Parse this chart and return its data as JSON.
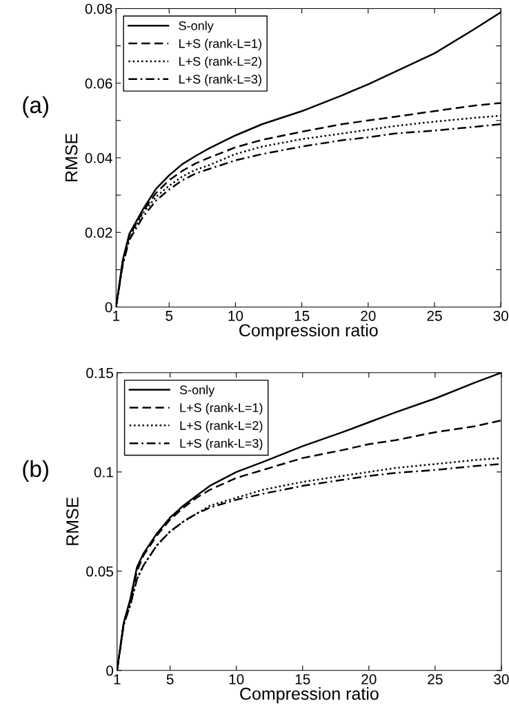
{
  "chart_data": [
    {
      "type": "line",
      "xlabel": "Compression ratio",
      "ylabel": "RMSE",
      "annotations": [
        "(a)"
      ],
      "legend": "top left",
      "grid": false,
      "xlim": [
        1,
        30
      ],
      "xticks": [
        1,
        5,
        10,
        15,
        20,
        25,
        30
      ],
      "ylim": [
        0,
        0.08
      ],
      "yticks": [
        0,
        {
          "value": 0.01,
          "label": null
        },
        0.02,
        {
          "value": 0.03,
          "label": null
        },
        0.04,
        {
          "value": 0.05,
          "label": null
        },
        0.06,
        {
          "value": 0.07,
          "label": null
        },
        0.08
      ],
      "x": [
        1,
        1.5,
        2,
        3,
        4,
        5,
        6,
        7,
        8,
        10,
        12,
        15,
        18,
        20,
        22,
        25,
        28,
        30
      ],
      "series": [
        {
          "name": "S-only",
          "color": "#000000",
          "line_style": "solid",
          "values": [
            0,
            0.0125,
            0.0196,
            0.026,
            0.0316,
            0.0353,
            0.0383,
            0.0405,
            0.0425,
            0.046,
            0.049,
            0.0525,
            0.0567,
            0.0597,
            0.063,
            0.068,
            0.0745,
            0.079
          ]
        },
        {
          "name": "L+S (rank-L=1)",
          "color": "#000000",
          "line_style": "dashed",
          "values": [
            0,
            0.0118,
            0.019,
            0.0255,
            0.0305,
            0.034,
            0.0365,
            0.0385,
            0.04,
            0.0428,
            0.0448,
            0.047,
            0.049,
            0.05,
            0.051,
            0.0525,
            0.054,
            0.0547
          ]
        },
        {
          "name": "L+S (rank-L=2)",
          "color": "#000000",
          "line_style": "dotted",
          "values": [
            0,
            0.0115,
            0.0185,
            0.025,
            0.0295,
            0.0325,
            0.035,
            0.0368,
            0.038,
            0.041,
            0.043,
            0.045,
            0.0465,
            0.0475,
            0.0485,
            0.0497,
            0.0507,
            0.0513
          ]
        },
        {
          "name": "L+S (rank-L=3)",
          "color": "#000000",
          "line_style": "dashdot",
          "values": [
            0,
            0.0112,
            0.018,
            0.024,
            0.0285,
            0.0315,
            0.034,
            0.0358,
            0.037,
            0.0393,
            0.041,
            0.043,
            0.0447,
            0.0455,
            0.0465,
            0.0473,
            0.0483,
            0.049
          ]
        }
      ]
    },
    {
      "type": "line",
      "xlabel": "Compression ratio",
      "ylabel": "RMSE",
      "annotations": [
        "(b)"
      ],
      "legend": "top left",
      "grid": false,
      "xlim": [
        1,
        30
      ],
      "xticks": [
        1,
        5,
        10,
        15,
        20,
        25,
        30
      ],
      "ylim": [
        0,
        0.15
      ],
      "yticks": [
        0,
        0.05,
        0.1,
        0.15
      ],
      "x": [
        1,
        1.5,
        2,
        2.5,
        3,
        4,
        5,
        6,
        7,
        8,
        10,
        12,
        15,
        18,
        20,
        22,
        25,
        28,
        30
      ],
      "series": [
        {
          "name": "S-only",
          "color": "#000000",
          "line_style": "solid",
          "values": [
            0,
            0.024,
            0.036,
            0.052,
            0.059,
            0.069,
            0.077,
            0.083,
            0.088,
            0.093,
            0.1,
            0.105,
            0.113,
            0.12,
            0.125,
            0.13,
            0.137,
            0.145,
            0.15
          ]
        },
        {
          "name": "L+S (rank-L=1)",
          "color": "#000000",
          "line_style": "dashed",
          "values": [
            0,
            0.024,
            0.035,
            0.05,
            0.058,
            0.068,
            0.076,
            0.082,
            0.087,
            0.091,
            0.097,
            0.101,
            0.107,
            0.111,
            0.114,
            0.116,
            0.12,
            0.123,
            0.126
          ]
        },
        {
          "name": "L+S (rank-L=2)",
          "color": "#000000",
          "line_style": "dotted",
          "values": [
            0,
            0.023,
            0.033,
            0.046,
            0.053,
            0.063,
            0.07,
            0.075,
            0.079,
            0.083,
            0.087,
            0.091,
            0.095,
            0.098,
            0.1,
            0.102,
            0.104,
            0.106,
            0.107
          ]
        },
        {
          "name": "L+S (rank-L=3)",
          "color": "#000000",
          "line_style": "dashdot",
          "values": [
            0,
            0.023,
            0.033,
            0.046,
            0.053,
            0.063,
            0.07,
            0.075,
            0.079,
            0.082,
            0.086,
            0.089,
            0.093,
            0.096,
            0.098,
            0.0995,
            0.101,
            0.103,
            0.104
          ]
        }
      ]
    }
  ]
}
